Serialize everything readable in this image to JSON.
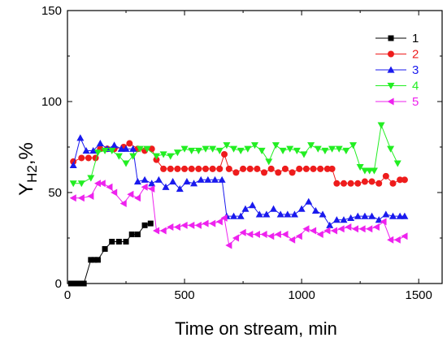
{
  "chart_data": {
    "type": "line",
    "title": "",
    "xlabel": "Time on stream, min",
    "ylabel": "Y",
    "ylabel_sub": "H2",
    "ylabel_suffix": ",%",
    "xlim": [
      0,
      1600
    ],
    "ylim": [
      0,
      150
    ],
    "xticks": [
      0,
      500,
      1000,
      1500
    ],
    "yticks": [
      0,
      50,
      100,
      150
    ],
    "grid": false,
    "legend_position": "top-right",
    "series": [
      {
        "name": "1",
        "color": "#000000",
        "marker": "square",
        "points": [
          [
            15,
            0
          ],
          [
            30,
            0
          ],
          [
            50,
            0
          ],
          [
            70,
            0
          ],
          [
            100,
            13
          ],
          [
            115,
            13
          ],
          [
            130,
            13
          ],
          [
            160,
            19
          ],
          [
            190,
            23
          ],
          [
            220,
            23
          ],
          [
            250,
            23
          ],
          [
            275,
            27
          ],
          [
            300,
            27
          ],
          [
            330,
            32
          ],
          [
            355,
            33
          ]
        ]
      },
      {
        "name": "2",
        "color": "#ee1c1c",
        "marker": "circle",
        "points": [
          [
            25,
            67
          ],
          [
            60,
            69
          ],
          [
            90,
            69
          ],
          [
            120,
            69
          ],
          [
            140,
            74
          ],
          [
            170,
            74
          ],
          [
            200,
            74
          ],
          [
            240,
            75
          ],
          [
            265,
            77
          ],
          [
            300,
            74
          ],
          [
            330,
            73
          ],
          [
            360,
            74
          ],
          [
            380,
            68
          ],
          [
            410,
            63
          ],
          [
            440,
            63
          ],
          [
            470,
            63
          ],
          [
            500,
            63
          ],
          [
            530,
            63
          ],
          [
            560,
            63
          ],
          [
            590,
            63
          ],
          [
            620,
            63
          ],
          [
            650,
            63
          ],
          [
            670,
            71
          ],
          [
            690,
            63
          ],
          [
            720,
            61
          ],
          [
            750,
            63
          ],
          [
            780,
            63
          ],
          [
            810,
            63
          ],
          [
            840,
            61
          ],
          [
            870,
            63
          ],
          [
            900,
            61
          ],
          [
            930,
            63
          ],
          [
            960,
            61
          ],
          [
            990,
            63
          ],
          [
            1020,
            63
          ],
          [
            1050,
            63
          ],
          [
            1080,
            63
          ],
          [
            1110,
            63
          ],
          [
            1130,
            63
          ],
          [
            1150,
            55
          ],
          [
            1180,
            55
          ],
          [
            1210,
            55
          ],
          [
            1240,
            55
          ],
          [
            1270,
            56
          ],
          [
            1300,
            56
          ],
          [
            1330,
            55
          ],
          [
            1360,
            59
          ],
          [
            1390,
            55
          ],
          [
            1420,
            57
          ],
          [
            1440,
            57
          ]
        ]
      },
      {
        "name": "3",
        "color": "#1a1aee",
        "marker": "triangle-up",
        "points": [
          [
            25,
            65
          ],
          [
            55,
            80
          ],
          [
            80,
            73
          ],
          [
            110,
            73
          ],
          [
            140,
            77
          ],
          [
            170,
            74
          ],
          [
            200,
            76
          ],
          [
            230,
            74
          ],
          [
            250,
            74
          ],
          [
            280,
            74
          ],
          [
            300,
            56
          ],
          [
            330,
            57
          ],
          [
            360,
            55
          ],
          [
            390,
            57
          ],
          [
            420,
            53
          ],
          [
            450,
            56
          ],
          [
            480,
            52
          ],
          [
            510,
            56
          ],
          [
            540,
            55
          ],
          [
            570,
            57
          ],
          [
            600,
            57
          ],
          [
            630,
            57
          ],
          [
            660,
            57
          ],
          [
            680,
            37
          ],
          [
            710,
            37
          ],
          [
            740,
            37
          ],
          [
            760,
            41
          ],
          [
            790,
            43
          ],
          [
            820,
            38
          ],
          [
            850,
            38
          ],
          [
            880,
            41
          ],
          [
            910,
            38
          ],
          [
            940,
            38
          ],
          [
            970,
            38
          ],
          [
            1000,
            41
          ],
          [
            1030,
            45
          ],
          [
            1060,
            40
          ],
          [
            1090,
            38
          ],
          [
            1120,
            32
          ],
          [
            1150,
            35
          ],
          [
            1180,
            35
          ],
          [
            1210,
            36
          ],
          [
            1240,
            37
          ],
          [
            1270,
            37
          ],
          [
            1300,
            37
          ],
          [
            1330,
            35
          ],
          [
            1360,
            38
          ],
          [
            1390,
            37
          ],
          [
            1420,
            37
          ],
          [
            1440,
            37
          ]
        ]
      },
      {
        "name": "4",
        "color": "#22ee22",
        "marker": "triangle-down",
        "points": [
          [
            25,
            55
          ],
          [
            60,
            55
          ],
          [
            100,
            58
          ],
          [
            130,
            72
          ],
          [
            160,
            73
          ],
          [
            190,
            73
          ],
          [
            220,
            70
          ],
          [
            250,
            66
          ],
          [
            280,
            70
          ],
          [
            310,
            74
          ],
          [
            340,
            74
          ],
          [
            380,
            70
          ],
          [
            410,
            71
          ],
          [
            440,
            70
          ],
          [
            470,
            72
          ],
          [
            500,
            74
          ],
          [
            530,
            73
          ],
          [
            560,
            73
          ],
          [
            590,
            74
          ],
          [
            620,
            74
          ],
          [
            650,
            73
          ],
          [
            680,
            76
          ],
          [
            710,
            74
          ],
          [
            740,
            73
          ],
          [
            770,
            74
          ],
          [
            800,
            76
          ],
          [
            830,
            73
          ],
          [
            860,
            67
          ],
          [
            890,
            76
          ],
          [
            920,
            73
          ],
          [
            950,
            74
          ],
          [
            980,
            73
          ],
          [
            1010,
            71
          ],
          [
            1040,
            76
          ],
          [
            1070,
            74
          ],
          [
            1100,
            73
          ],
          [
            1130,
            74
          ],
          [
            1160,
            74
          ],
          [
            1190,
            73
          ],
          [
            1220,
            76
          ],
          [
            1250,
            64
          ],
          [
            1270,
            62
          ],
          [
            1290,
            62
          ],
          [
            1310,
            62
          ],
          [
            1340,
            87
          ],
          [
            1380,
            74
          ],
          [
            1410,
            66
          ]
        ]
      },
      {
        "name": "5",
        "color": "#ee22ee",
        "marker": "triangle-left",
        "points": [
          [
            25,
            47
          ],
          [
            60,
            47
          ],
          [
            100,
            48
          ],
          [
            130,
            55
          ],
          [
            150,
            55
          ],
          [
            180,
            53
          ],
          [
            200,
            50
          ],
          [
            240,
            44
          ],
          [
            270,
            49
          ],
          [
            300,
            47
          ],
          [
            330,
            53
          ],
          [
            360,
            52
          ],
          [
            380,
            29
          ],
          [
            410,
            29
          ],
          [
            440,
            31
          ],
          [
            470,
            31
          ],
          [
            500,
            32
          ],
          [
            530,
            32
          ],
          [
            560,
            32
          ],
          [
            590,
            33
          ],
          [
            620,
            33
          ],
          [
            650,
            34
          ],
          [
            670,
            36
          ],
          [
            690,
            21
          ],
          [
            720,
            25
          ],
          [
            750,
            28
          ],
          [
            780,
            27
          ],
          [
            810,
            27
          ],
          [
            840,
            27
          ],
          [
            870,
            26
          ],
          [
            900,
            27
          ],
          [
            930,
            27
          ],
          [
            960,
            24
          ],
          [
            990,
            26
          ],
          [
            1020,
            30
          ],
          [
            1050,
            29
          ],
          [
            1080,
            27
          ],
          [
            1110,
            29
          ],
          [
            1140,
            29
          ],
          [
            1170,
            30
          ],
          [
            1200,
            31
          ],
          [
            1230,
            30
          ],
          [
            1260,
            30
          ],
          [
            1290,
            30
          ],
          [
            1320,
            31
          ],
          [
            1350,
            34
          ],
          [
            1380,
            24
          ],
          [
            1410,
            24
          ],
          [
            1440,
            26
          ]
        ]
      }
    ]
  }
}
